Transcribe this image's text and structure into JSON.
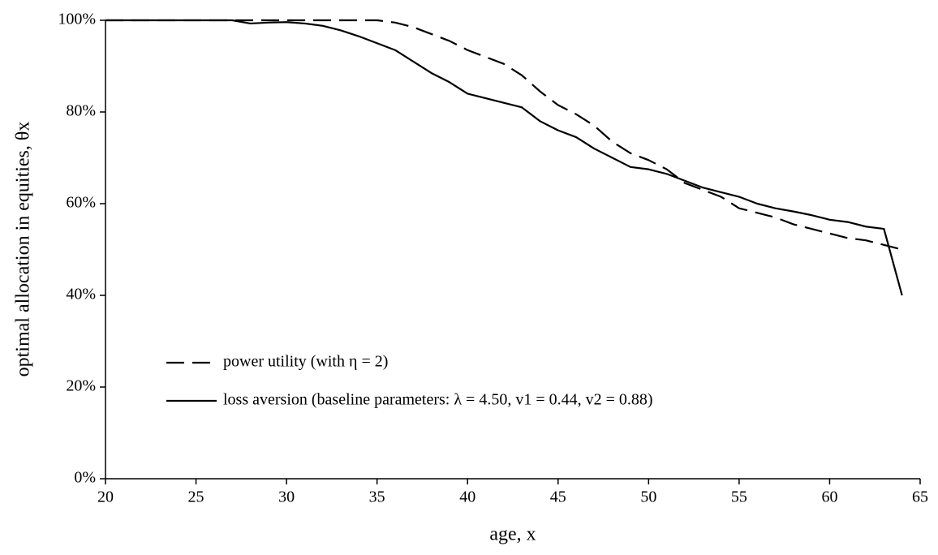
{
  "chart_data": {
    "type": "line",
    "xlabel": "age, x",
    "ylabel": "optimal allocation in equities, θx",
    "x": [
      20,
      21,
      22,
      23,
      24,
      25,
      26,
      27,
      28,
      29,
      30,
      31,
      32,
      33,
      34,
      35,
      36,
      37,
      38,
      39,
      40,
      41,
      42,
      43,
      44,
      45,
      46,
      47,
      48,
      49,
      50,
      51,
      52,
      53,
      54,
      55,
      56,
      57,
      58,
      59,
      60,
      61,
      62,
      63,
      64
    ],
    "series": [
      {
        "name": "power utility (with η = 2)",
        "color": "#000000",
        "dash": "dashed",
        "values": [
          100,
          100,
          100,
          100,
          100,
          100,
          100,
          100,
          100,
          100,
          100,
          100,
          100,
          100,
          100,
          100,
          99.5,
          98.5,
          97,
          95.5,
          93.5,
          92,
          90.5,
          88,
          84.5,
          81.5,
          79.5,
          77,
          73.5,
          71,
          69.5,
          67.5,
          64.5,
          63,
          61.5,
          59,
          58,
          57,
          55.5,
          54.5,
          53.5,
          52.5,
          52,
          51,
          50
        ]
      },
      {
        "name": "loss aversion (baseline parameters: λ = 4.50, v1 = 0.44, v2 = 0.88)",
        "color": "#000000",
        "dash": "solid",
        "values": [
          100,
          100,
          100,
          100,
          100,
          100,
          100,
          100,
          99.3,
          99.5,
          99.6,
          99.3,
          98.8,
          97.8,
          96.5,
          95,
          93.5,
          91,
          88.5,
          86.5,
          84,
          83,
          82,
          81,
          78,
          76,
          74.5,
          72,
          70,
          68,
          67.5,
          66.5,
          65,
          63.5,
          62.5,
          61.5,
          60,
          59,
          58.3,
          57.5,
          56.5,
          56,
          55,
          54.5,
          40
        ]
      }
    ],
    "xlim": [
      20,
      65
    ],
    "xticks": [
      20,
      25,
      30,
      35,
      40,
      45,
      50,
      55,
      60,
      65
    ],
    "ylim": [
      0,
      100
    ],
    "yticks": [
      {
        "value": 0,
        "label": "0%"
      },
      {
        "value": 20,
        "label": "20%"
      },
      {
        "value": 40,
        "label": "40%"
      },
      {
        "value": 60,
        "label": "60%"
      },
      {
        "value": 80,
        "label": "80%"
      },
      {
        "value": 100,
        "label": "100%"
      }
    ],
    "grid": false,
    "legend": "lower-left"
  }
}
